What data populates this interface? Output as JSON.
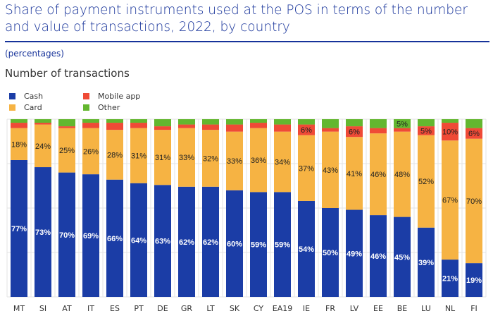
{
  "title": "Share of payment instruments used at the POS in terms of the number and value of transactions, 2022, by country",
  "subtitle": "(percentages)",
  "panel_title": "Number of transactions",
  "colors": {
    "Cash": "#1b3da6",
    "Card": "#f6b343",
    "Mobile app": "#ef4a36",
    "Other": "#63b72f",
    "title": "#17339a"
  },
  "chart_data": {
    "type": "bar",
    "stacked": true,
    "ylim": [
      0,
      100
    ],
    "grid": true,
    "legend_position": "top-left",
    "categories": [
      "MT",
      "SI",
      "AT",
      "IT",
      "ES",
      "PT",
      "DE",
      "GR",
      "LT",
      "SK",
      "CY",
      "EA19",
      "IE",
      "FR",
      "LV",
      "EE",
      "BE",
      "LU",
      "NL",
      "FI"
    ],
    "series": [
      {
        "name": "Cash",
        "values": [
          77,
          73,
          70,
          69,
          66,
          64,
          63,
          62,
          62,
          60,
          59,
          59,
          54,
          50,
          49,
          46,
          45,
          39,
          21,
          19
        ]
      },
      {
        "name": "Card",
        "values": [
          18,
          24,
          25,
          26,
          28,
          31,
          31,
          33,
          32,
          33,
          36,
          34,
          37,
          43,
          41,
          46,
          48,
          52,
          67,
          70
        ]
      },
      {
        "name": "Mobile app",
        "values": [
          3,
          1,
          1,
          3,
          4,
          3,
          2,
          2,
          3,
          4,
          3,
          4,
          6,
          2,
          6,
          3,
          2,
          5,
          10,
          6
        ]
      },
      {
        "name": "Other",
        "values": [
          2,
          2,
          4,
          2,
          2,
          2,
          4,
          3,
          3,
          3,
          2,
          3,
          3,
          5,
          4,
          5,
          5,
          4,
          2,
          5
        ]
      }
    ],
    "data_labels": {
      "Cash": [
        77,
        73,
        70,
        69,
        66,
        64,
        63,
        62,
        62,
        60,
        59,
        59,
        54,
        50,
        49,
        46,
        45,
        39,
        21,
        19
      ],
      "Card": [
        18,
        24,
        25,
        26,
        28,
        31,
        31,
        33,
        32,
        33,
        36,
        34,
        37,
        43,
        41,
        46,
        48,
        52,
        67,
        70
      ],
      "Mobile app": [
        null,
        null,
        null,
        null,
        null,
        null,
        null,
        null,
        null,
        null,
        null,
        null,
        6,
        null,
        6,
        null,
        null,
        5,
        10,
        6
      ],
      "Other": [
        null,
        null,
        null,
        null,
        null,
        null,
        null,
        null,
        null,
        null,
        null,
        null,
        null,
        null,
        null,
        null,
        5,
        null,
        null,
        null
      ]
    }
  }
}
